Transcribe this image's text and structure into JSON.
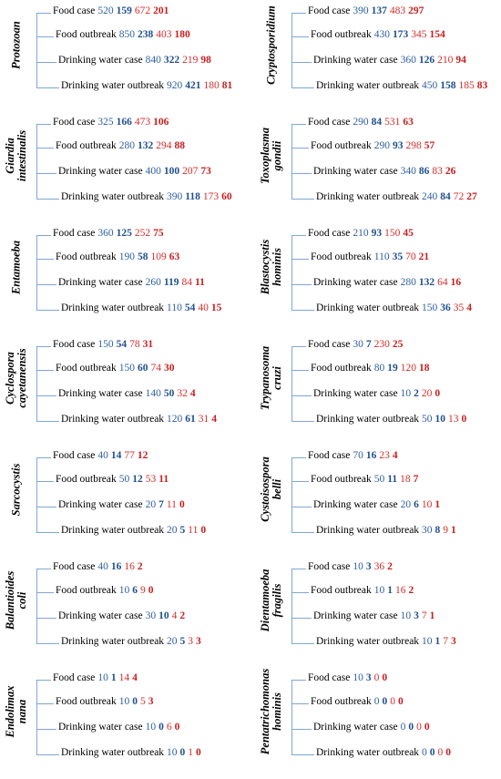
{
  "colors": {
    "bracket": "#7fa7d9",
    "blue_regular": "#2e5fa0",
    "blue_bold": "#1f4f8f",
    "red_regular": "#d62d2d",
    "red_bold": "#c81e1e"
  },
  "panels": [
    {
      "title": [
        "Protozoan"
      ],
      "rows": [
        {
          "label": "Food case",
          "v1": "520",
          "v2": "159",
          "v3": "672",
          "v4": "201"
        },
        {
          "label": "Food outbreak",
          "v1": "850",
          "v2": "238",
          "v3": "403",
          "v4": "180"
        },
        {
          "label": "Drinking water case",
          "v1": "840",
          "v2": "322",
          "v3": "219",
          "v4": "98"
        },
        {
          "label": "Drinking water outbreak",
          "v1": "920",
          "v2": "421",
          "v3": "180",
          "v4": "81"
        }
      ]
    },
    {
      "title": [
        "Cryptosporidium"
      ],
      "rows": [
        {
          "label": "Food case",
          "v1": "390",
          "v2": "137",
          "v3": "483",
          "v4": "297"
        },
        {
          "label": "Food outbreak",
          "v1": "430",
          "v2": "173",
          "v3": "345",
          "v4": "154"
        },
        {
          "label": "Drinking water case",
          "v1": "360",
          "v2": "126",
          "v3": "210",
          "v4": "94"
        },
        {
          "label": "Drinking water outbreak",
          "v1": "450",
          "v2": "158",
          "v3": "185",
          "v4": "83"
        }
      ]
    },
    {
      "title": [
        "Giardia",
        "intestinalis"
      ],
      "rows": [
        {
          "label": "Food case",
          "v1": "325",
          "v2": "166",
          "v3": "473",
          "v4": "106"
        },
        {
          "label": "Food outbreak",
          "v1": "280",
          "v2": "132",
          "v3": "294",
          "v4": "88"
        },
        {
          "label": "Drinking water case",
          "v1": "400",
          "v2": "100",
          "v3": "207",
          "v4": "73"
        },
        {
          "label": "Drinking water outbreak",
          "v1": "390",
          "v2": "118",
          "v3": "173",
          "v4": "60"
        }
      ]
    },
    {
      "title": [
        "Toxoplasma",
        "gondii"
      ],
      "rows": [
        {
          "label": "Food case",
          "v1": "290",
          "v2": "84",
          "v3": "531",
          "v4": "63"
        },
        {
          "label": "Food outbreak",
          "v1": "290",
          "v2": "93",
          "v3": "298",
          "v4": "57"
        },
        {
          "label": "Drinking water case",
          "v1": "340",
          "v2": "86",
          "v3": "83",
          "v4": "26"
        },
        {
          "label": "Drinking water outbreak",
          "v1": "240",
          "v2": "84",
          "v3": "72",
          "v4": "27"
        }
      ]
    },
    {
      "title": [
        "Entamoeba"
      ],
      "rows": [
        {
          "label": "Food case",
          "v1": "360",
          "v2": "125",
          "v3": "252",
          "v4": "75"
        },
        {
          "label": "Food outbreak",
          "v1": "190",
          "v2": "58",
          "v3": "109",
          "v4": "63"
        },
        {
          "label": "Drinking water case",
          "v1": "260",
          "v2": "119",
          "v3": "84",
          "v4": "11"
        },
        {
          "label": "Drinking water outbreak",
          "v1": "110",
          "v2": "54",
          "v3": "40",
          "v4": "15"
        }
      ]
    },
    {
      "title": [
        "Blastocystis",
        "hominis"
      ],
      "rows": [
        {
          "label": "Food case",
          "v1": "210",
          "v2": "93",
          "v3": "150",
          "v4": "45"
        },
        {
          "label": "Food outbreak",
          "v1": "110",
          "v2": "35",
          "v3": "70",
          "v4": "21"
        },
        {
          "label": "Drinking water case",
          "v1": "280",
          "v2": "132",
          "v3": "64",
          "v4": "16"
        },
        {
          "label": "Drinking water outbreak",
          "v1": "150",
          "v2": "36",
          "v3": "35",
          "v4": "4"
        }
      ]
    },
    {
      "title": [
        "Cyclospora",
        "cayetanensis"
      ],
      "rows": [
        {
          "label": "Food case",
          "v1": "150",
          "v2": "54",
          "v3": "78",
          "v4": "31"
        },
        {
          "label": "Food outbreak",
          "v1": "150",
          "v2": "60",
          "v3": "74",
          "v4": "30"
        },
        {
          "label": "Drinking water case",
          "v1": "140",
          "v2": "50",
          "v3": "32",
          "v4": "4"
        },
        {
          "label": "Drinking water outbreak",
          "v1": "120",
          "v2": "61",
          "v3": "31",
          "v4": "4"
        }
      ]
    },
    {
      "title": [
        "Trypanosoma",
        "cruzi"
      ],
      "rows": [
        {
          "label": "Food case",
          "v1": "30",
          "v2": "7",
          "v3": "230",
          "v4": "25"
        },
        {
          "label": "Food outbreak",
          "v1": "80",
          "v2": "19",
          "v3": "120",
          "v4": "18"
        },
        {
          "label": "Drinking water case",
          "v1": "10",
          "v2": "2",
          "v3": "20",
          "v4": "0"
        },
        {
          "label": "Drinking water outbreak",
          "v1": "50",
          "v2": "10",
          "v3": "13",
          "v4": "0"
        }
      ]
    },
    {
      "title": [
        "Sarcocystis"
      ],
      "rows": [
        {
          "label": "Food case",
          "v1": "40",
          "v2": "14",
          "v3": "77",
          "v4": "12"
        },
        {
          "label": "Food outbreak",
          "v1": "50",
          "v2": "12",
          "v3": "53",
          "v4": "11"
        },
        {
          "label": "Drinking water case",
          "v1": "20",
          "v2": "7",
          "v3": "11",
          "v4": "0"
        },
        {
          "label": "Drinking water outbreak",
          "v1": "20",
          "v2": "5",
          "v3": "11",
          "v4": "0"
        }
      ]
    },
    {
      "title": [
        "Cystoisospora",
        "belli"
      ],
      "rows": [
        {
          "label": "Food case",
          "v1": "70",
          "v2": "16",
          "v3": "23",
          "v4": "4"
        },
        {
          "label": "Food outbreak",
          "v1": "50",
          "v2": "11",
          "v3": "18",
          "v4": "7"
        },
        {
          "label": "Drinking water case",
          "v1": "20",
          "v2": "6",
          "v3": "10",
          "v4": "1"
        },
        {
          "label": "Drinking water outbreak",
          "v1": "30",
          "v2": "8",
          "v3": "9",
          "v4": "1"
        }
      ]
    },
    {
      "title": [
        "Balantioides",
        "coli"
      ],
      "rows": [
        {
          "label": "Food case",
          "v1": "40",
          "v2": "16",
          "v3": "16",
          "v4": "2"
        },
        {
          "label": "Food outbreak",
          "v1": "10",
          "v2": "6",
          "v3": "9",
          "v4": "0"
        },
        {
          "label": "Drinking water case",
          "v1": "30",
          "v2": "10",
          "v3": "4",
          "v4": "2"
        },
        {
          "label": "Drinking water outbreak",
          "v1": "20",
          "v2": "5",
          "v3": "3",
          "v4": "3"
        }
      ]
    },
    {
      "title": [
        "Dientamoeba",
        "fragilis"
      ],
      "rows": [
        {
          "label": "Food case",
          "v1": "10",
          "v2": "3",
          "v3": "36",
          "v4": "2"
        },
        {
          "label": "Food outbreak",
          "v1": "10",
          "v2": "1",
          "v3": "16",
          "v4": "2"
        },
        {
          "label": "Drinking water case",
          "v1": "10",
          "v2": "3",
          "v3": "7",
          "v4": "1"
        },
        {
          "label": "Drinking water outbreak",
          "v1": "10",
          "v2": "1",
          "v3": "7",
          "v4": "3"
        }
      ]
    },
    {
      "title": [
        "Endolimax",
        "nana"
      ],
      "rows": [
        {
          "label": "Food case",
          "v1": "10",
          "v2": "1",
          "v3": "14",
          "v4": "4"
        },
        {
          "label": "Food outbreak",
          "v1": "10",
          "v2": "0",
          "v3": "5",
          "v4": "3"
        },
        {
          "label": "Drinking water case",
          "v1": "10",
          "v2": "0",
          "v3": "6",
          "v4": "0"
        },
        {
          "label": "Drinking water outbreak",
          "v1": "10",
          "v2": "0",
          "v3": "1",
          "v4": "0"
        }
      ]
    },
    {
      "title": [
        "Pentatrichomonas",
        "hominis"
      ],
      "rows": [
        {
          "label": "Food case",
          "v1": "10",
          "v2": "3",
          "v3": "0",
          "v4": "0"
        },
        {
          "label": "Food outbreak",
          "v1": "0",
          "v2": "0",
          "v3": "0",
          "v4": "0"
        },
        {
          "label": "Drinking water case",
          "v1": "0",
          "v2": "0",
          "v3": "0",
          "v4": "0"
        },
        {
          "label": "Drinking water outbreak",
          "v1": "0",
          "v2": "0",
          "v3": "0",
          "v4": "0"
        }
      ]
    }
  ]
}
